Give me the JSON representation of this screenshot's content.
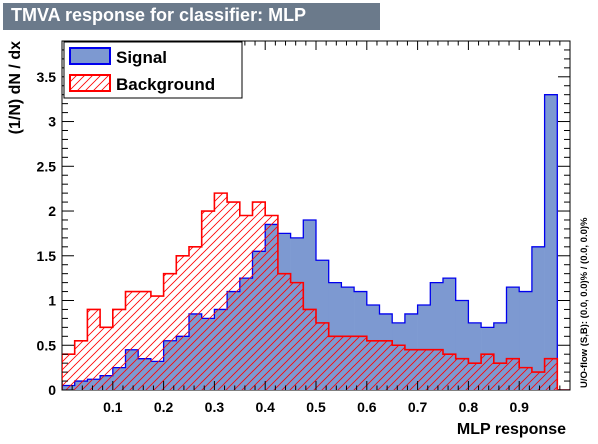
{
  "title": "TMVA response for classifier: MLP",
  "side_note": "U/O-flow (S,B): (0.0, 0.0)% / (0.0, 0.0)%",
  "colors": {
    "signal_fill": "#7d99d1",
    "signal_line": "#0000ee",
    "background_line": "#ff0000",
    "title_box": "#6b7a8b"
  },
  "chart_data": {
    "type": "histogram",
    "xlabel": "MLP response",
    "ylabel": "(1/N) dN / dx",
    "xlim": [
      0.0,
      1.0
    ],
    "ylim": [
      0.0,
      3.9
    ],
    "bins": 40,
    "x_ticks": [
      "0.1",
      "0.2",
      "0.3",
      "0.4",
      "0.5",
      "0.6",
      "0.7",
      "0.8",
      "0.9"
    ],
    "y_ticks": [
      "0",
      "0.5",
      "1",
      "1.5",
      "2",
      "2.5",
      "3",
      "3.5"
    ],
    "legend_position": "top-left",
    "legend": [
      {
        "label": "Signal",
        "style": "solid-fill"
      },
      {
        "label": "Background",
        "style": "hatched"
      }
    ],
    "series": [
      {
        "name": "Signal",
        "values": [
          0.05,
          0.1,
          0.12,
          0.16,
          0.25,
          0.45,
          0.35,
          0.32,
          0.55,
          0.6,
          0.85,
          0.8,
          0.9,
          1.1,
          1.25,
          1.55,
          1.85,
          1.75,
          1.7,
          1.9,
          1.45,
          1.2,
          1.15,
          1.1,
          0.95,
          0.85,
          0.75,
          0.85,
          0.95,
          1.2,
          1.25,
          1.0,
          0.75,
          0.7,
          0.75,
          1.15,
          1.1,
          1.6,
          3.3,
          0.0
        ]
      },
      {
        "name": "Background",
        "values": [
          0.4,
          0.55,
          0.9,
          0.7,
          0.9,
          1.1,
          1.1,
          1.05,
          1.3,
          1.5,
          1.6,
          2.0,
          2.2,
          2.1,
          1.95,
          2.1,
          1.95,
          1.3,
          1.2,
          0.9,
          0.75,
          0.6,
          0.6,
          0.6,
          0.55,
          0.55,
          0.5,
          0.45,
          0.45,
          0.45,
          0.4,
          0.35,
          0.3,
          0.4,
          0.3,
          0.35,
          0.25,
          0.2,
          0.35,
          0.0
        ]
      }
    ]
  }
}
